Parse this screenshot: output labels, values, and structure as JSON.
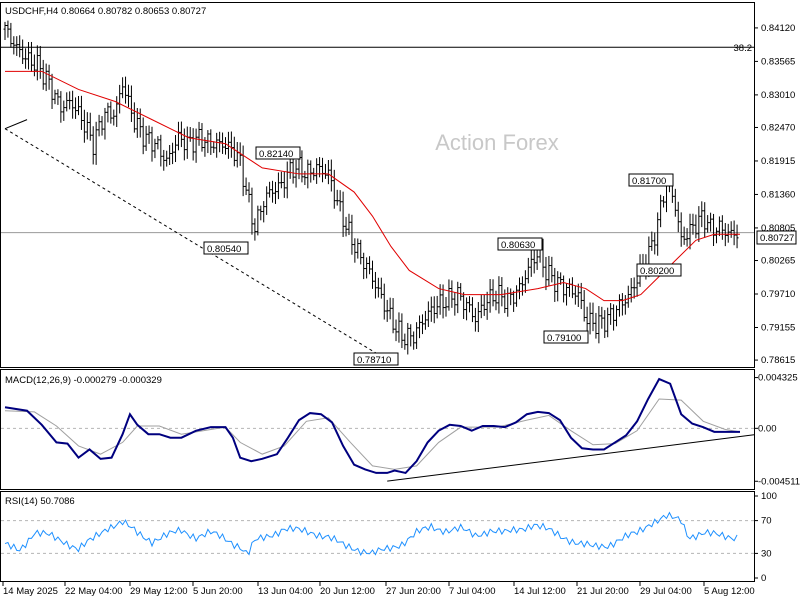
{
  "price_header": "USDCHF,H4  0.80664 0.80782 0.80653 0.80727",
  "watermark": "Action Forex",
  "fib_label": "38.2",
  "current_price_tag": "0.80727",
  "macd_header": "MACD(12,26,9) -0.000279 -0.000329",
  "rsi_header": "RSI(14) 50.7086",
  "colors": {
    "candles": "#000000",
    "sma": "#e00000",
    "macd_line": "#00007f",
    "signal_line": "#a0a0a0",
    "rsi_line": "#1e90ff"
  },
  "chart_data": [
    {
      "type": "candlestick",
      "title": "USDCHF,H4",
      "ohlc_last": {
        "open": 0.80664,
        "high": 0.80782,
        "low": 0.80653,
        "close": 0.80727
      },
      "ylim": [
        0.7855,
        0.8445
      ],
      "y_ticks": [
        "0.84120",
        "0.83565",
        "0.83010",
        "0.82470",
        "0.81915",
        "0.81360",
        "0.80805",
        "0.80265",
        "0.79710",
        "0.79155",
        "0.78615"
      ],
      "x_tick_labels": [
        "14 May 2025",
        "22 May 04:00",
        "29 May 12:00",
        "5 Jun 20:00",
        "13 Jun 04:00",
        "20 Jun 12:00",
        "27 Jun 20:00",
        "7 Jul 04:00",
        "14 Jul 12:00",
        "21 Jul 20:00",
        "29 Jul 04:00",
        "5 Aug 12:00"
      ],
      "swing_labels": [
        {
          "label": "0.82140",
          "value": 0.8214
        },
        {
          "label": "0.80540",
          "value": 0.8054
        },
        {
          "label": "0.78710",
          "value": 0.7871
        },
        {
          "label": "0.80630",
          "value": 0.8063
        },
        {
          "label": "0.79100",
          "value": 0.791
        },
        {
          "label": "0.81700",
          "value": 0.817
        },
        {
          "label": "0.80200",
          "value": 0.802
        }
      ],
      "fib_level": {
        "label": "38.2",
        "value": 0.838
      },
      "current_price": 0.80727,
      "close_path": [
        [
          0,
          0.841
        ],
        [
          3,
          0.838
        ],
        [
          6,
          0.836
        ],
        [
          9,
          0.835
        ],
        [
          12,
          0.832
        ],
        [
          15,
          0.828
        ],
        [
          18,
          0.829
        ],
        [
          21,
          0.826
        ],
        [
          24,
          0.822
        ],
        [
          27,
          0.827
        ],
        [
          30,
          0.827
        ],
        [
          32,
          0.832
        ],
        [
          35,
          0.826
        ],
        [
          38,
          0.823
        ],
        [
          41,
          0.822
        ],
        [
          44,
          0.819
        ],
        [
          47,
          0.823
        ],
        [
          50,
          0.822
        ],
        [
          53,
          0.823
        ],
        [
          56,
          0.822
        ],
        [
          59,
          0.822
        ],
        [
          62,
          0.821
        ],
        [
          64,
          0.819
        ],
        [
          66,
          0.813
        ],
        [
          68,
          0.808
        ],
        [
          70,
          0.812
        ],
        [
          72,
          0.814
        ],
        [
          75,
          0.815
        ],
        [
          78,
          0.818
        ],
        [
          80,
          0.818
        ],
        [
          82,
          0.817
        ],
        [
          85,
          0.818
        ],
        [
          88,
          0.817
        ],
        [
          90,
          0.813
        ],
        [
          93,
          0.808
        ],
        [
          96,
          0.804
        ],
        [
          99,
          0.801
        ],
        [
          102,
          0.797
        ],
        [
          105,
          0.793
        ],
        [
          108,
          0.79
        ],
        [
          111,
          0.79
        ],
        [
          114,
          0.793
        ],
        [
          117,
          0.795
        ],
        [
          120,
          0.796
        ],
        [
          123,
          0.797
        ],
        [
          126,
          0.795
        ],
        [
          128,
          0.793
        ],
        [
          131,
          0.796
        ],
        [
          134,
          0.797
        ],
        [
          137,
          0.796
        ],
        [
          140,
          0.798
        ],
        [
          143,
          0.802
        ],
        [
          145,
          0.804
        ],
        [
          147,
          0.801
        ],
        [
          150,
          0.799
        ],
        [
          153,
          0.798
        ],
        [
          156,
          0.797
        ],
        [
          158,
          0.793
        ],
        [
          161,
          0.792
        ],
        [
          164,
          0.793
        ],
        [
          167,
          0.795
        ],
        [
          170,
          0.797
        ],
        [
          173,
          0.801
        ],
        [
          176,
          0.805
        ],
        [
          178,
          0.81
        ],
        [
          180,
          0.816
        ],
        [
          182,
          0.813
        ],
        [
          184,
          0.806
        ],
        [
          187,
          0.808
        ],
        [
          190,
          0.81
        ],
        [
          192,
          0.808
        ],
        [
          195,
          0.808
        ],
        [
          197,
          0.807
        ],
        [
          200,
          0.8073
        ]
      ],
      "series": [
        {
          "name": "",
          "values": [
            [
              0,
              0.834
            ],
            [
              10,
              0.834
            ],
            [
              20,
              0.831
            ],
            [
              30,
              0.829
            ],
            [
              40,
              0.826
            ],
            [
              50,
              0.823
            ],
            [
              60,
              0.822
            ],
            [
              70,
              0.818
            ],
            [
              80,
              0.817
            ],
            [
              88,
              0.817
            ],
            [
              95,
              0.814
            ],
            [
              100,
              0.81
            ],
            [
              105,
              0.805
            ],
            [
              110,
              0.801
            ],
            [
              118,
              0.798
            ],
            [
              125,
              0.797
            ],
            [
              135,
              0.797
            ],
            [
              145,
              0.798
            ],
            [
              152,
              0.799
            ],
            [
              158,
              0.798
            ],
            [
              163,
              0.796
            ],
            [
              168,
              0.796
            ],
            [
              173,
              0.797
            ],
            [
              178,
              0.8
            ],
            [
              183,
              0.803
            ],
            [
              188,
              0.806
            ],
            [
              193,
              0.807
            ],
            [
              200,
              0.807
            ]
          ]
        }
      ]
    },
    {
      "type": "line",
      "title": "MACD(12,26,9)",
      "ylim": [
        -0.005,
        0.0048
      ],
      "y_ticks": [
        "0.004325",
        "0.00",
        "-0.004511"
      ],
      "zero_tick": "0.00",
      "series": [
        {
          "name": "",
          "values": [
            [
              0,
              0.0018
            ],
            [
              6,
              0.0015
            ],
            [
              10,
              0.0003
            ],
            [
              14,
              -0.0012
            ],
            [
              17,
              -0.0013
            ],
            [
              20,
              -0.0025
            ],
            [
              23,
              -0.0018
            ],
            [
              26,
              -0.0026
            ],
            [
              29,
              -0.0025
            ],
            [
              32,
              -0.0005
            ],
            [
              34,
              0.0012
            ],
            [
              36,
              0.0003
            ],
            [
              39,
              -0.0005
            ],
            [
              42,
              -0.0005
            ],
            [
              45,
              -0.0008
            ],
            [
              48,
              -0.0008
            ],
            [
              52,
              -0.0002
            ],
            [
              56,
              0.0001
            ],
            [
              60,
              0.0001
            ],
            [
              62,
              -0.0008
            ],
            [
              64,
              -0.0025
            ],
            [
              67,
              -0.0028
            ],
            [
              70,
              -0.0026
            ],
            [
              74,
              -0.0022
            ],
            [
              77,
              -0.0008
            ],
            [
              80,
              0.0007
            ],
            [
              83,
              0.0013
            ],
            [
              86,
              0.0012
            ],
            [
              89,
              0.0005
            ],
            [
              92,
              -0.0015
            ],
            [
              95,
              -0.0031
            ],
            [
              98,
              -0.0035
            ],
            [
              101,
              -0.0038
            ],
            [
              104,
              -0.0038
            ],
            [
              106,
              -0.0036
            ],
            [
              109,
              -0.0038
            ],
            [
              112,
              -0.0028
            ],
            [
              115,
              -0.0012
            ],
            [
              118,
              -0.0002
            ],
            [
              121,
              0.0003
            ],
            [
              124,
              0.0002
            ],
            [
              127,
              -0.0002
            ],
            [
              130,
              0.0002
            ],
            [
              133,
              0.0002
            ],
            [
              136,
              0.0001
            ],
            [
              139,
              0.0005
            ],
            [
              142,
              0.0012
            ],
            [
              145,
              0.0014
            ],
            [
              148,
              0.0013
            ],
            [
              151,
              0.0007
            ],
            [
              154,
              -0.0008
            ],
            [
              157,
              -0.0017
            ],
            [
              160,
              -0.0018
            ],
            [
              163,
              -0.0018
            ],
            [
              166,
              -0.0012
            ],
            [
              169,
              -0.0006
            ],
            [
              172,
              0.0006
            ],
            [
              175,
              0.0025
            ],
            [
              178,
              0.0042
            ],
            [
              181,
              0.0038
            ],
            [
              184,
              0.0012
            ],
            [
              187,
              0.0004
            ],
            [
              190,
              0.0001
            ],
            [
              193,
              -0.0003
            ],
            [
              196,
              -0.0003
            ],
            [
              200,
              -0.0003
            ]
          ]
        },
        {
          "name": "",
          "values": [
            [
              0,
              0.0015
            ],
            [
              8,
              0.0014
            ],
            [
              14,
              0.0002
            ],
            [
              20,
              -0.0015
            ],
            [
              26,
              -0.0022
            ],
            [
              32,
              -0.0012
            ],
            [
              36,
              0.0002
            ],
            [
              42,
              0.0002
            ],
            [
              48,
              -0.0005
            ],
            [
              56,
              -0.0001
            ],
            [
              60,
              0.0001
            ],
            [
              64,
              -0.0012
            ],
            [
              70,
              -0.0022
            ],
            [
              76,
              -0.0015
            ],
            [
              82,
              0.0006
            ],
            [
              88,
              0.0009
            ],
            [
              94,
              -0.0012
            ],
            [
              100,
              -0.0032
            ],
            [
              106,
              -0.0035
            ],
            [
              112,
              -0.0032
            ],
            [
              118,
              -0.0012
            ],
            [
              124,
              0.0001
            ],
            [
              134,
              0.0001
            ],
            [
              142,
              0.0007
            ],
            [
              148,
              0.0011
            ],
            [
              154,
              -0.0002
            ],
            [
              160,
              -0.0014
            ],
            [
              166,
              -0.0013
            ],
            [
              172,
              -0.0002
            ],
            [
              178,
              0.0025
            ],
            [
              184,
              0.0024
            ],
            [
              190,
              0.0006
            ],
            [
              196,
              -0.0001
            ],
            [
              200,
              -0.0003
            ]
          ]
        }
      ],
      "trendline": [
        [
          104,
          -0.0045
        ],
        [
          200,
          -0.00055
        ]
      ]
    },
    {
      "type": "line",
      "title": "RSI(14)",
      "ylim": [
        0,
        100
      ],
      "y_ticks": [
        "100",
        "70",
        "30",
        "0"
      ],
      "series": [
        {
          "name": "",
          "values": [
            [
              0,
              40
            ],
            [
              4,
              35
            ],
            [
              8,
              55
            ],
            [
              12,
              52
            ],
            [
              16,
              45
            ],
            [
              20,
              35
            ],
            [
              24,
              48
            ],
            [
              28,
              62
            ],
            [
              32,
              68
            ],
            [
              36,
              55
            ],
            [
              40,
              45
            ],
            [
              44,
              52
            ],
            [
              48,
              58
            ],
            [
              52,
              50
            ],
            [
              56,
              55
            ],
            [
              60,
              48
            ],
            [
              64,
              38
            ],
            [
              66,
              28
            ],
            [
              68,
              45
            ],
            [
              72,
              52
            ],
            [
              76,
              60
            ],
            [
              80,
              58
            ],
            [
              84,
              55
            ],
            [
              88,
              50
            ],
            [
              92,
              40
            ],
            [
              96,
              35
            ],
            [
              100,
              30
            ],
            [
              104,
              35
            ],
            [
              108,
              42
            ],
            [
              112,
              55
            ],
            [
              116,
              62
            ],
            [
              120,
              58
            ],
            [
              124,
              60
            ],
            [
              128,
              52
            ],
            [
              132,
              58
            ],
            [
              136,
              55
            ],
            [
              140,
              60
            ],
            [
              144,
              65
            ],
            [
              148,
              58
            ],
            [
              152,
              50
            ],
            [
              156,
              42
            ],
            [
              160,
              38
            ],
            [
              164,
              40
            ],
            [
              168,
              48
            ],
            [
              172,
              55
            ],
            [
              176,
              68
            ],
            [
              180,
              75
            ],
            [
              184,
              70
            ],
            [
              186,
              50
            ],
            [
              190,
              55
            ],
            [
              194,
              52
            ],
            [
              198,
              50
            ],
            [
              200,
              50.7
            ]
          ]
        }
      ]
    }
  ]
}
